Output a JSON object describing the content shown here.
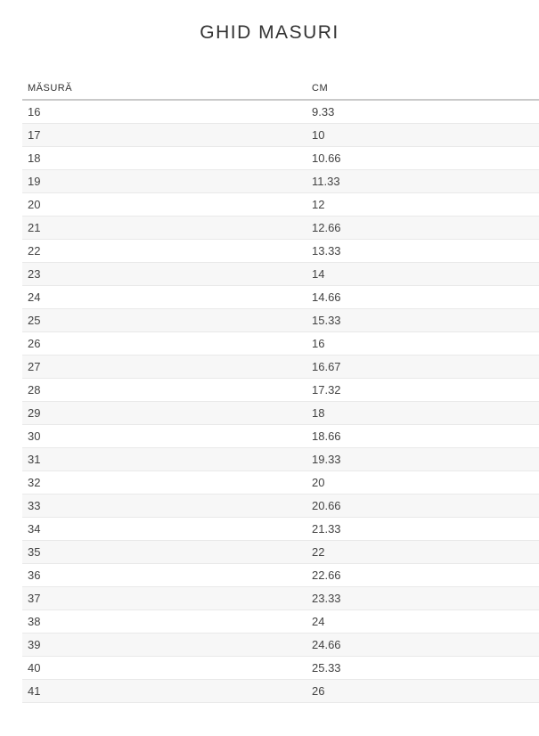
{
  "page": {
    "title": "GHID MASURI",
    "background_color": "#ffffff"
  },
  "table": {
    "columns": [
      {
        "key": "size",
        "label": "MĂSURĂ"
      },
      {
        "key": "cm",
        "label": "CM"
      }
    ],
    "stripe_color": "#f7f7f7",
    "row_border_color": "#e9e9e9",
    "header_border_color": "#c9c9c9",
    "rows": [
      {
        "size": "16",
        "cm": "9.33"
      },
      {
        "size": "17",
        "cm": "10"
      },
      {
        "size": "18",
        "cm": "10.66"
      },
      {
        "size": "19",
        "cm": "11.33"
      },
      {
        "size": "20",
        "cm": "12"
      },
      {
        "size": "21",
        "cm": "12.66"
      },
      {
        "size": "22",
        "cm": "13.33"
      },
      {
        "size": "23",
        "cm": "14"
      },
      {
        "size": "24",
        "cm": "14.66"
      },
      {
        "size": "25",
        "cm": "15.33"
      },
      {
        "size": "26",
        "cm": "16"
      },
      {
        "size": "27",
        "cm": "16.67"
      },
      {
        "size": "28",
        "cm": "17.32"
      },
      {
        "size": "29",
        "cm": "18"
      },
      {
        "size": "30",
        "cm": "18.66"
      },
      {
        "size": "31",
        "cm": "19.33"
      },
      {
        "size": "32",
        "cm": "20"
      },
      {
        "size": "33",
        "cm": "20.66"
      },
      {
        "size": "34",
        "cm": "21.33"
      },
      {
        "size": "35",
        "cm": "22"
      },
      {
        "size": "36",
        "cm": "22.66"
      },
      {
        "size": "37",
        "cm": "23.33"
      },
      {
        "size": "38",
        "cm": "24"
      },
      {
        "size": "39",
        "cm": "24.66"
      },
      {
        "size": "40",
        "cm": "25.33"
      },
      {
        "size": "41",
        "cm": "26"
      }
    ]
  }
}
